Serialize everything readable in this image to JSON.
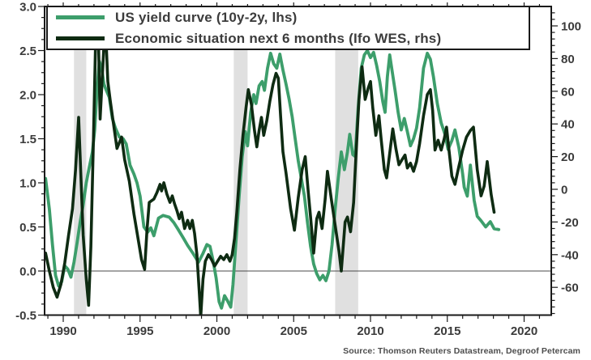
{
  "source": {
    "text": "Source: Thomson Reuters Datastream, Degroof Petercam"
  },
  "chart_data": {
    "type": "line",
    "title": "",
    "legend_position": "top-left-box",
    "grid": "off",
    "x_axis": {
      "range_years": [
        1988.8,
        2021.8
      ],
      "major_ticks": [
        1990,
        1995,
        2000,
        2005,
        2010,
        2015,
        2020
      ],
      "minor_tick_step_years": 1
    },
    "y_axis_left": {
      "title": "",
      "range": [
        -0.5,
        3.0
      ],
      "major_ticks": [
        3.0,
        2.5,
        2.0,
        1.5,
        1.0,
        0.5,
        0.0,
        -0.5
      ],
      "minor_tick_step": 0.125,
      "zero_reference_line": 0.0
    },
    "y_axis_right": {
      "title": "",
      "range_visible_labels": [
        -60,
        100
      ],
      "major_ticks": [
        100,
        80,
        60,
        40,
        20,
        0,
        -20,
        -40,
        -60
      ],
      "minor_tick_step": 4
    },
    "recession_bands_years": [
      [
        1990.7,
        1991.5
      ],
      [
        2001.1,
        2002.0
      ],
      [
        2007.7,
        2009.2
      ]
    ],
    "band_color": "#e0e0e0",
    "series": [
      {
        "name": "US yield curve (10y-2y, lhs)",
        "axis": "left",
        "color": "#3d9e6b",
        "points": [
          [
            1988.85,
            1.05
          ],
          [
            1989.1,
            0.7
          ],
          [
            1989.3,
            0.3
          ],
          [
            1989.5,
            -0.05
          ],
          [
            1989.7,
            -0.17
          ],
          [
            1989.9,
            -0.12
          ],
          [
            1990.1,
            0.06
          ],
          [
            1990.3,
            0.02
          ],
          [
            1990.5,
            -0.07
          ],
          [
            1990.7,
            0.1
          ],
          [
            1990.9,
            0.32
          ],
          [
            1991.1,
            0.55
          ],
          [
            1991.3,
            0.75
          ],
          [
            1991.5,
            1.0
          ],
          [
            1991.7,
            1.18
          ],
          [
            1991.9,
            1.35
          ],
          [
            1992.05,
            1.6
          ],
          [
            1992.2,
            2.05
          ],
          [
            1992.35,
            2.38
          ],
          [
            1992.5,
            2.3
          ],
          [
            1992.65,
            2.12
          ],
          [
            1992.8,
            2.05
          ],
          [
            1993.0,
            1.97
          ],
          [
            1993.2,
            1.73
          ],
          [
            1993.4,
            1.62
          ],
          [
            1993.65,
            1.52
          ],
          [
            1993.9,
            1.5
          ],
          [
            1994.1,
            1.44
          ],
          [
            1994.35,
            1.2
          ],
          [
            1994.6,
            1.1
          ],
          [
            1994.8,
            1.0
          ],
          [
            1995.0,
            0.85
          ],
          [
            1995.25,
            0.5
          ],
          [
            1995.5,
            0.44
          ],
          [
            1995.7,
            0.49
          ],
          [
            1995.9,
            0.4
          ],
          [
            1996.2,
            0.6
          ],
          [
            1996.5,
            0.63
          ],
          [
            1996.9,
            0.61
          ],
          [
            1997.2,
            0.55
          ],
          [
            1997.45,
            0.48
          ],
          [
            1997.8,
            0.38
          ],
          [
            1998.1,
            0.29
          ],
          [
            1998.45,
            0.2
          ],
          [
            1998.8,
            0.1
          ],
          [
            1999.1,
            0.2
          ],
          [
            1999.35,
            0.3
          ],
          [
            1999.55,
            0.28
          ],
          [
            1999.75,
            0.12
          ],
          [
            1999.95,
            -0.08
          ],
          [
            2000.15,
            -0.35
          ],
          [
            2000.3,
            -0.42
          ],
          [
            2000.5,
            -0.28
          ],
          [
            2000.7,
            -0.34
          ],
          [
            2000.9,
            -0.41
          ],
          [
            2001.05,
            -0.15
          ],
          [
            2001.25,
            0.35
          ],
          [
            2001.45,
            0.85
          ],
          [
            2001.65,
            1.3
          ],
          [
            2001.85,
            1.58
          ],
          [
            2002.0,
            1.42
          ],
          [
            2002.2,
            1.8
          ],
          [
            2002.4,
            2.0
          ],
          [
            2002.55,
            1.9
          ],
          [
            2002.75,
            2.1
          ],
          [
            2002.95,
            2.15
          ],
          [
            2003.1,
            2.05
          ],
          [
            2003.3,
            2.3
          ],
          [
            2003.5,
            2.47
          ],
          [
            2003.7,
            2.35
          ],
          [
            2003.9,
            2.3
          ],
          [
            2004.1,
            2.46
          ],
          [
            2004.3,
            2.28
          ],
          [
            2004.5,
            2.12
          ],
          [
            2004.7,
            1.95
          ],
          [
            2004.9,
            1.75
          ],
          [
            2005.1,
            1.5
          ],
          [
            2005.3,
            1.25
          ],
          [
            2005.5,
            1.05
          ],
          [
            2005.7,
            0.85
          ],
          [
            2005.9,
            0.55
          ],
          [
            2006.1,
            0.28
          ],
          [
            2006.3,
            0.08
          ],
          [
            2006.5,
            -0.03
          ],
          [
            2006.7,
            -0.1
          ],
          [
            2006.9,
            -0.05
          ],
          [
            2007.1,
            -0.11
          ],
          [
            2007.3,
            0.0
          ],
          [
            2007.5,
            0.3
          ],
          [
            2007.7,
            0.7
          ],
          [
            2007.9,
            1.05
          ],
          [
            2008.1,
            1.35
          ],
          [
            2008.3,
            1.15
          ],
          [
            2008.5,
            1.35
          ],
          [
            2008.65,
            1.55
          ],
          [
            2008.85,
            1.32
          ],
          [
            2009.0,
            1.3
          ],
          [
            2009.2,
            1.85
          ],
          [
            2009.4,
            2.3
          ],
          [
            2009.6,
            2.45
          ],
          [
            2009.8,
            2.5
          ],
          [
            2010.0,
            2.42
          ],
          [
            2010.2,
            2.48
          ],
          [
            2010.4,
            2.33
          ],
          [
            2010.6,
            2.15
          ],
          [
            2010.8,
            1.92
          ],
          [
            2010.95,
            1.8
          ],
          [
            2011.1,
            2.2
          ],
          [
            2011.25,
            2.45
          ],
          [
            2011.4,
            2.28
          ],
          [
            2011.6,
            2.05
          ],
          [
            2011.8,
            1.8
          ],
          [
            2012.0,
            1.6
          ],
          [
            2012.2,
            1.73
          ],
          [
            2012.4,
            1.58
          ],
          [
            2012.6,
            1.42
          ],
          [
            2012.8,
            1.5
          ],
          [
            2013.0,
            1.62
          ],
          [
            2013.2,
            1.85
          ],
          [
            2013.45,
            2.3
          ],
          [
            2013.7,
            2.47
          ],
          [
            2013.9,
            2.4
          ],
          [
            2014.1,
            2.2
          ],
          [
            2014.35,
            1.9
          ],
          [
            2014.6,
            1.68
          ],
          [
            2014.85,
            1.55
          ],
          [
            2015.05,
            1.38
          ],
          [
            2015.3,
            1.48
          ],
          [
            2015.5,
            1.6
          ],
          [
            2015.75,
            1.4
          ],
          [
            2016.0,
            1.1
          ],
          [
            2016.1,
            0.95
          ],
          [
            2016.3,
            0.85
          ],
          [
            2016.5,
            1.2
          ],
          [
            2016.75,
            0.8
          ],
          [
            2016.95,
            0.62
          ],
          [
            2017.2,
            0.57
          ],
          [
            2017.5,
            0.5
          ],
          [
            2017.8,
            0.56
          ],
          [
            2018.05,
            0.48
          ],
          [
            2018.35,
            0.47
          ]
        ]
      },
      {
        "name": "Economic situation next 6 months (Ifo WES, rhs)",
        "axis": "right",
        "color": "#0e2b12",
        "points": [
          [
            1988.85,
            -39
          ],
          [
            1989.1,
            -50
          ],
          [
            1989.35,
            -60
          ],
          [
            1989.6,
            -66
          ],
          [
            1989.85,
            -58
          ],
          [
            1990.1,
            -45
          ],
          [
            1990.35,
            -28
          ],
          [
            1990.6,
            -12
          ],
          [
            1990.8,
            12
          ],
          [
            1991.0,
            44
          ],
          [
            1991.15,
            8
          ],
          [
            1991.3,
            -28
          ],
          [
            1991.5,
            -55
          ],
          [
            1991.65,
            -71
          ],
          [
            1991.8,
            -35
          ],
          [
            1991.95,
            25
          ],
          [
            1992.1,
            88
          ],
          [
            1992.3,
            88
          ],
          [
            1992.4,
            43
          ],
          [
            1992.55,
            70
          ],
          [
            1992.65,
            88
          ],
          [
            1992.8,
            88
          ],
          [
            1992.9,
            66
          ],
          [
            1993.05,
            55
          ],
          [
            1993.2,
            45
          ],
          [
            1993.5,
            25
          ],
          [
            1993.8,
            32
          ],
          [
            1994.0,
            18
          ],
          [
            1994.3,
            5
          ],
          [
            1994.6,
            -15
          ],
          [
            1994.9,
            -32
          ],
          [
            1995.1,
            -43
          ],
          [
            1995.3,
            -49
          ],
          [
            1995.45,
            -25
          ],
          [
            1995.6,
            -8
          ],
          [
            1995.9,
            -6
          ],
          [
            1996.1,
            -2
          ],
          [
            1996.3,
            3
          ],
          [
            1996.4,
            -1
          ],
          [
            1996.55,
            4
          ],
          [
            1996.75,
            -3
          ],
          [
            1996.95,
            -8
          ],
          [
            1997.1,
            -4
          ],
          [
            1997.25,
            -9
          ],
          [
            1997.4,
            -13
          ],
          [
            1997.55,
            -18
          ],
          [
            1997.7,
            -14
          ],
          [
            1997.9,
            -24
          ],
          [
            1998.1,
            -19
          ],
          [
            1998.25,
            -24
          ],
          [
            1998.4,
            -19
          ],
          [
            1998.55,
            -27
          ],
          [
            1998.7,
            -40
          ],
          [
            1998.85,
            -62
          ],
          [
            1998.95,
            -78
          ],
          [
            1999.1,
            -55
          ],
          [
            1999.25,
            -44
          ],
          [
            1999.45,
            -40
          ],
          [
            1999.65,
            -43
          ],
          [
            1999.85,
            -47
          ],
          [
            2000.05,
            -44
          ],
          [
            2000.25,
            -41
          ],
          [
            2000.45,
            -43
          ],
          [
            2000.65,
            -40
          ],
          [
            2000.85,
            -44
          ],
          [
            2001.0,
            -40
          ],
          [
            2001.15,
            -30
          ],
          [
            2001.3,
            -14
          ],
          [
            2001.5,
            12
          ],
          [
            2001.7,
            33
          ],
          [
            2001.9,
            50
          ],
          [
            2002.05,
            61
          ],
          [
            2002.25,
            52
          ],
          [
            2002.45,
            36
          ],
          [
            2002.6,
            26
          ],
          [
            2002.75,
            36
          ],
          [
            2002.9,
            44
          ],
          [
            2003.05,
            33
          ],
          [
            2003.25,
            42
          ],
          [
            2003.45,
            54
          ],
          [
            2003.65,
            64
          ],
          [
            2003.85,
            71
          ],
          [
            2004.0,
            68
          ],
          [
            2004.15,
            45
          ],
          [
            2004.3,
            23
          ],
          [
            2004.5,
            10
          ],
          [
            2004.8,
            -12
          ],
          [
            2005.05,
            -25
          ],
          [
            2005.3,
            -5
          ],
          [
            2005.55,
            12
          ],
          [
            2005.75,
            20
          ],
          [
            2005.95,
            -2
          ],
          [
            2006.1,
            -17
          ],
          [
            2006.3,
            -39
          ],
          [
            2006.5,
            -18
          ],
          [
            2006.65,
            -14
          ],
          [
            2006.85,
            -24
          ],
          [
            2007.05,
            -6
          ],
          [
            2007.2,
            11
          ],
          [
            2007.45,
            -6
          ],
          [
            2007.7,
            -22
          ],
          [
            2007.95,
            -38
          ],
          [
            2008.1,
            -50
          ],
          [
            2008.35,
            -20
          ],
          [
            2008.5,
            -17
          ],
          [
            2008.7,
            -26
          ],
          [
            2008.9,
            -8
          ],
          [
            2009.05,
            20
          ],
          [
            2009.25,
            55
          ],
          [
            2009.45,
            75
          ],
          [
            2009.65,
            55
          ],
          [
            2009.85,
            62
          ],
          [
            2010.0,
            66
          ],
          [
            2010.15,
            50
          ],
          [
            2010.35,
            33
          ],
          [
            2010.55,
            45
          ],
          [
            2010.7,
            30
          ],
          [
            2010.9,
            12
          ],
          [
            2011.05,
            7
          ],
          [
            2011.25,
            22
          ],
          [
            2011.45,
            37
          ],
          [
            2011.65,
            25
          ],
          [
            2011.85,
            15
          ],
          [
            2012.05,
            18
          ],
          [
            2012.25,
            21
          ],
          [
            2012.4,
            13
          ],
          [
            2012.6,
            16
          ],
          [
            2012.8,
            11
          ],
          [
            2013.0,
            17
          ],
          [
            2013.2,
            28
          ],
          [
            2013.45,
            45
          ],
          [
            2013.7,
            58
          ],
          [
            2013.9,
            61
          ],
          [
            2014.05,
            48
          ],
          [
            2014.2,
            24
          ],
          [
            2014.4,
            30
          ],
          [
            2014.6,
            24
          ],
          [
            2014.8,
            31
          ],
          [
            2014.95,
            38
          ],
          [
            2015.1,
            25
          ],
          [
            2015.3,
            8
          ],
          [
            2015.5,
            3
          ],
          [
            2015.75,
            14
          ],
          [
            2016.0,
            24
          ],
          [
            2016.25,
            32
          ],
          [
            2016.5,
            36
          ],
          [
            2016.7,
            38
          ],
          [
            2016.95,
            12
          ],
          [
            2017.2,
            -4
          ],
          [
            2017.4,
            2
          ],
          [
            2017.6,
            17
          ],
          [
            2017.85,
            -3
          ],
          [
            2018.05,
            -14
          ]
        ]
      }
    ]
  }
}
